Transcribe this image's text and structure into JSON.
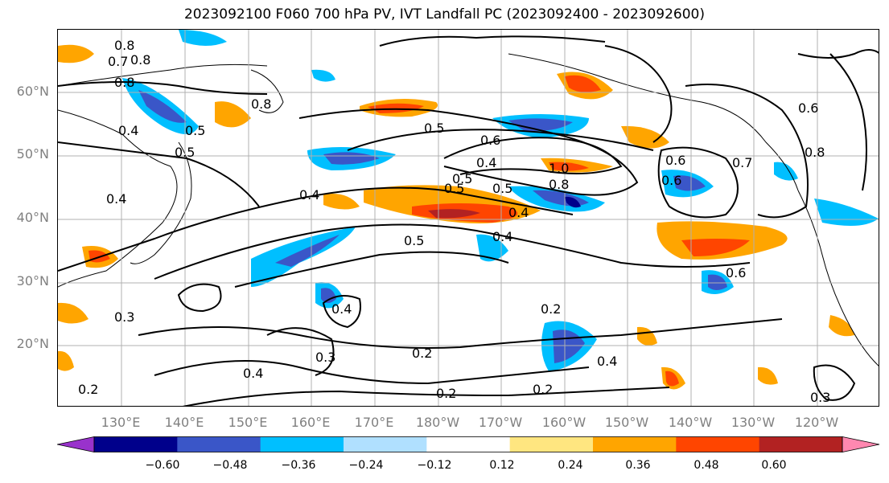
{
  "title": "2023092100 F060 700 hPa PV, IVT Landfall PC (2023092400 - 2023092600)",
  "lat_labels": [
    "60°N",
    "50°N",
    "40°N",
    "30°N",
    "20°N"
  ],
  "lon_labels": [
    "130°E",
    "140°E",
    "150°E",
    "160°E",
    "170°E",
    "180°W",
    "170°W",
    "160°W",
    "150°W",
    "140°W",
    "130°W",
    "120°W"
  ],
  "colorbar": {
    "tick_labels": [
      "−0.60",
      "−0.48",
      "−0.36",
      "−0.24",
      "−0.12",
      "0.12",
      "0.24",
      "0.36",
      "0.48",
      "0.60"
    ],
    "colors": [
      "#9932cc",
      "#00008b",
      "#3a56c8",
      "#00bfff",
      "#b0e0ff",
      "#ffffff",
      "#ffe680",
      "#ffa500",
      "#ff4500",
      "#b22222",
      "#ff88b0"
    ]
  },
  "contour_labels": [
    "0.8",
    "0.7",
    "0.8",
    "0.8",
    "0.4",
    "0.5",
    "0.8",
    "0.5",
    "0.6",
    "0.5",
    "0.4",
    "0.5",
    "0.4",
    "0.5",
    "0.6",
    "0.7",
    "0.8",
    "1.0",
    "0.8",
    "0.6",
    "0.6",
    "0.4",
    "0.5",
    "0.5",
    "0.4",
    "0.4",
    "0.3",
    "0.3",
    "0.4",
    "0.2",
    "0.2",
    "0.2",
    "0.4",
    "0.2",
    "0.3",
    "0.2",
    "0.4",
    "0.6"
  ]
}
